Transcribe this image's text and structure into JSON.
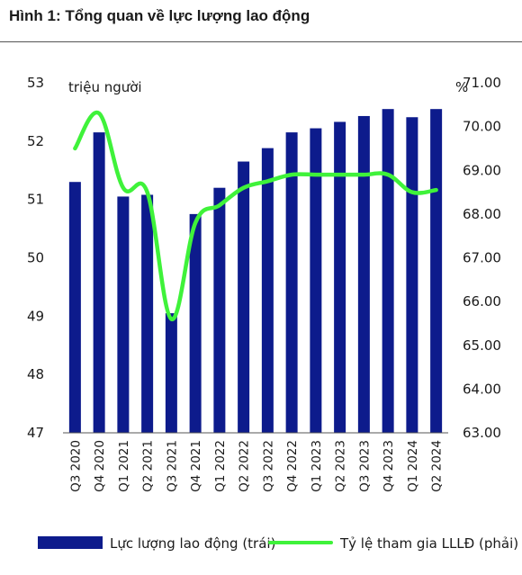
{
  "figure": {
    "title": "Hình 1:  Tổng quan về lực lượng lao động"
  },
  "colors": {
    "bar": "#0d1b8c",
    "line": "#3ff23a",
    "axis": "#555555"
  },
  "chart_data": {
    "type": "bar",
    "categories": [
      "Q3 2020",
      "Q4 2020",
      "Q1 2021",
      "Q2 2021",
      "Q3 2021",
      "Q4 2021",
      "Q1 2022",
      "Q2 2022",
      "Q3 2022",
      "Q4 2022",
      "Q1 2023",
      "Q2 2023",
      "Q3 2023",
      "Q4 2023",
      "Q1 2024",
      "Q2 2024"
    ],
    "left_axis": {
      "unit": "triệu người",
      "ylim": [
        47,
        53
      ],
      "ticks": [
        "47",
        "48",
        "49",
        "50",
        "51",
        "52",
        "53"
      ]
    },
    "right_axis": {
      "unit": "%",
      "ylim": [
        63,
        71
      ],
      "ticks": [
        "63.00",
        "64.00",
        "65.00",
        "66.00",
        "67.00",
        "68.00",
        "69.00",
        "70.00",
        "71.00"
      ]
    },
    "series": [
      {
        "name": "Lực lượng lao động (trái)",
        "type": "bar",
        "axis": "left",
        "values": [
          51.3,
          52.15,
          51.05,
          51.08,
          49.05,
          50.75,
          51.2,
          51.65,
          51.88,
          52.15,
          52.22,
          52.33,
          52.43,
          52.55,
          52.41,
          52.55
        ]
      },
      {
        "name": "Tỷ lệ tham gia LLLĐ (phải)",
        "type": "line",
        "axis": "right",
        "values": [
          69.5,
          70.3,
          68.6,
          68.5,
          65.6,
          67.8,
          68.2,
          68.6,
          68.75,
          68.9,
          68.9,
          68.9,
          68.9,
          68.9,
          68.5,
          68.55
        ]
      }
    ],
    "legend_position": "bottom",
    "grid": false
  }
}
